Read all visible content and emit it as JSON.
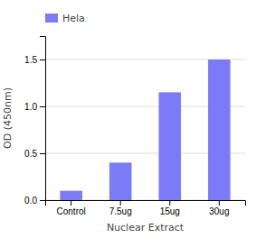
{
  "chart_data": {
    "type": "bar",
    "categories": [
      "Control",
      "7.5ug",
      "15ug",
      "30ug"
    ],
    "series": [
      {
        "name": "Hela",
        "color": "#7B7BF8",
        "values": [
          0.1,
          0.4,
          1.15,
          1.5
        ]
      }
    ],
    "xlabel": "Nuclear Extract",
    "ylabel": "OD (450nm)",
    "ylim": [
      0,
      1.75
    ],
    "yticks": [
      {
        "value": 0,
        "label": "0.0"
      },
      0.5,
      {
        "value": 1,
        "label": "1.0"
      },
      1.5
    ],
    "grid": true,
    "legend": "top-left"
  }
}
